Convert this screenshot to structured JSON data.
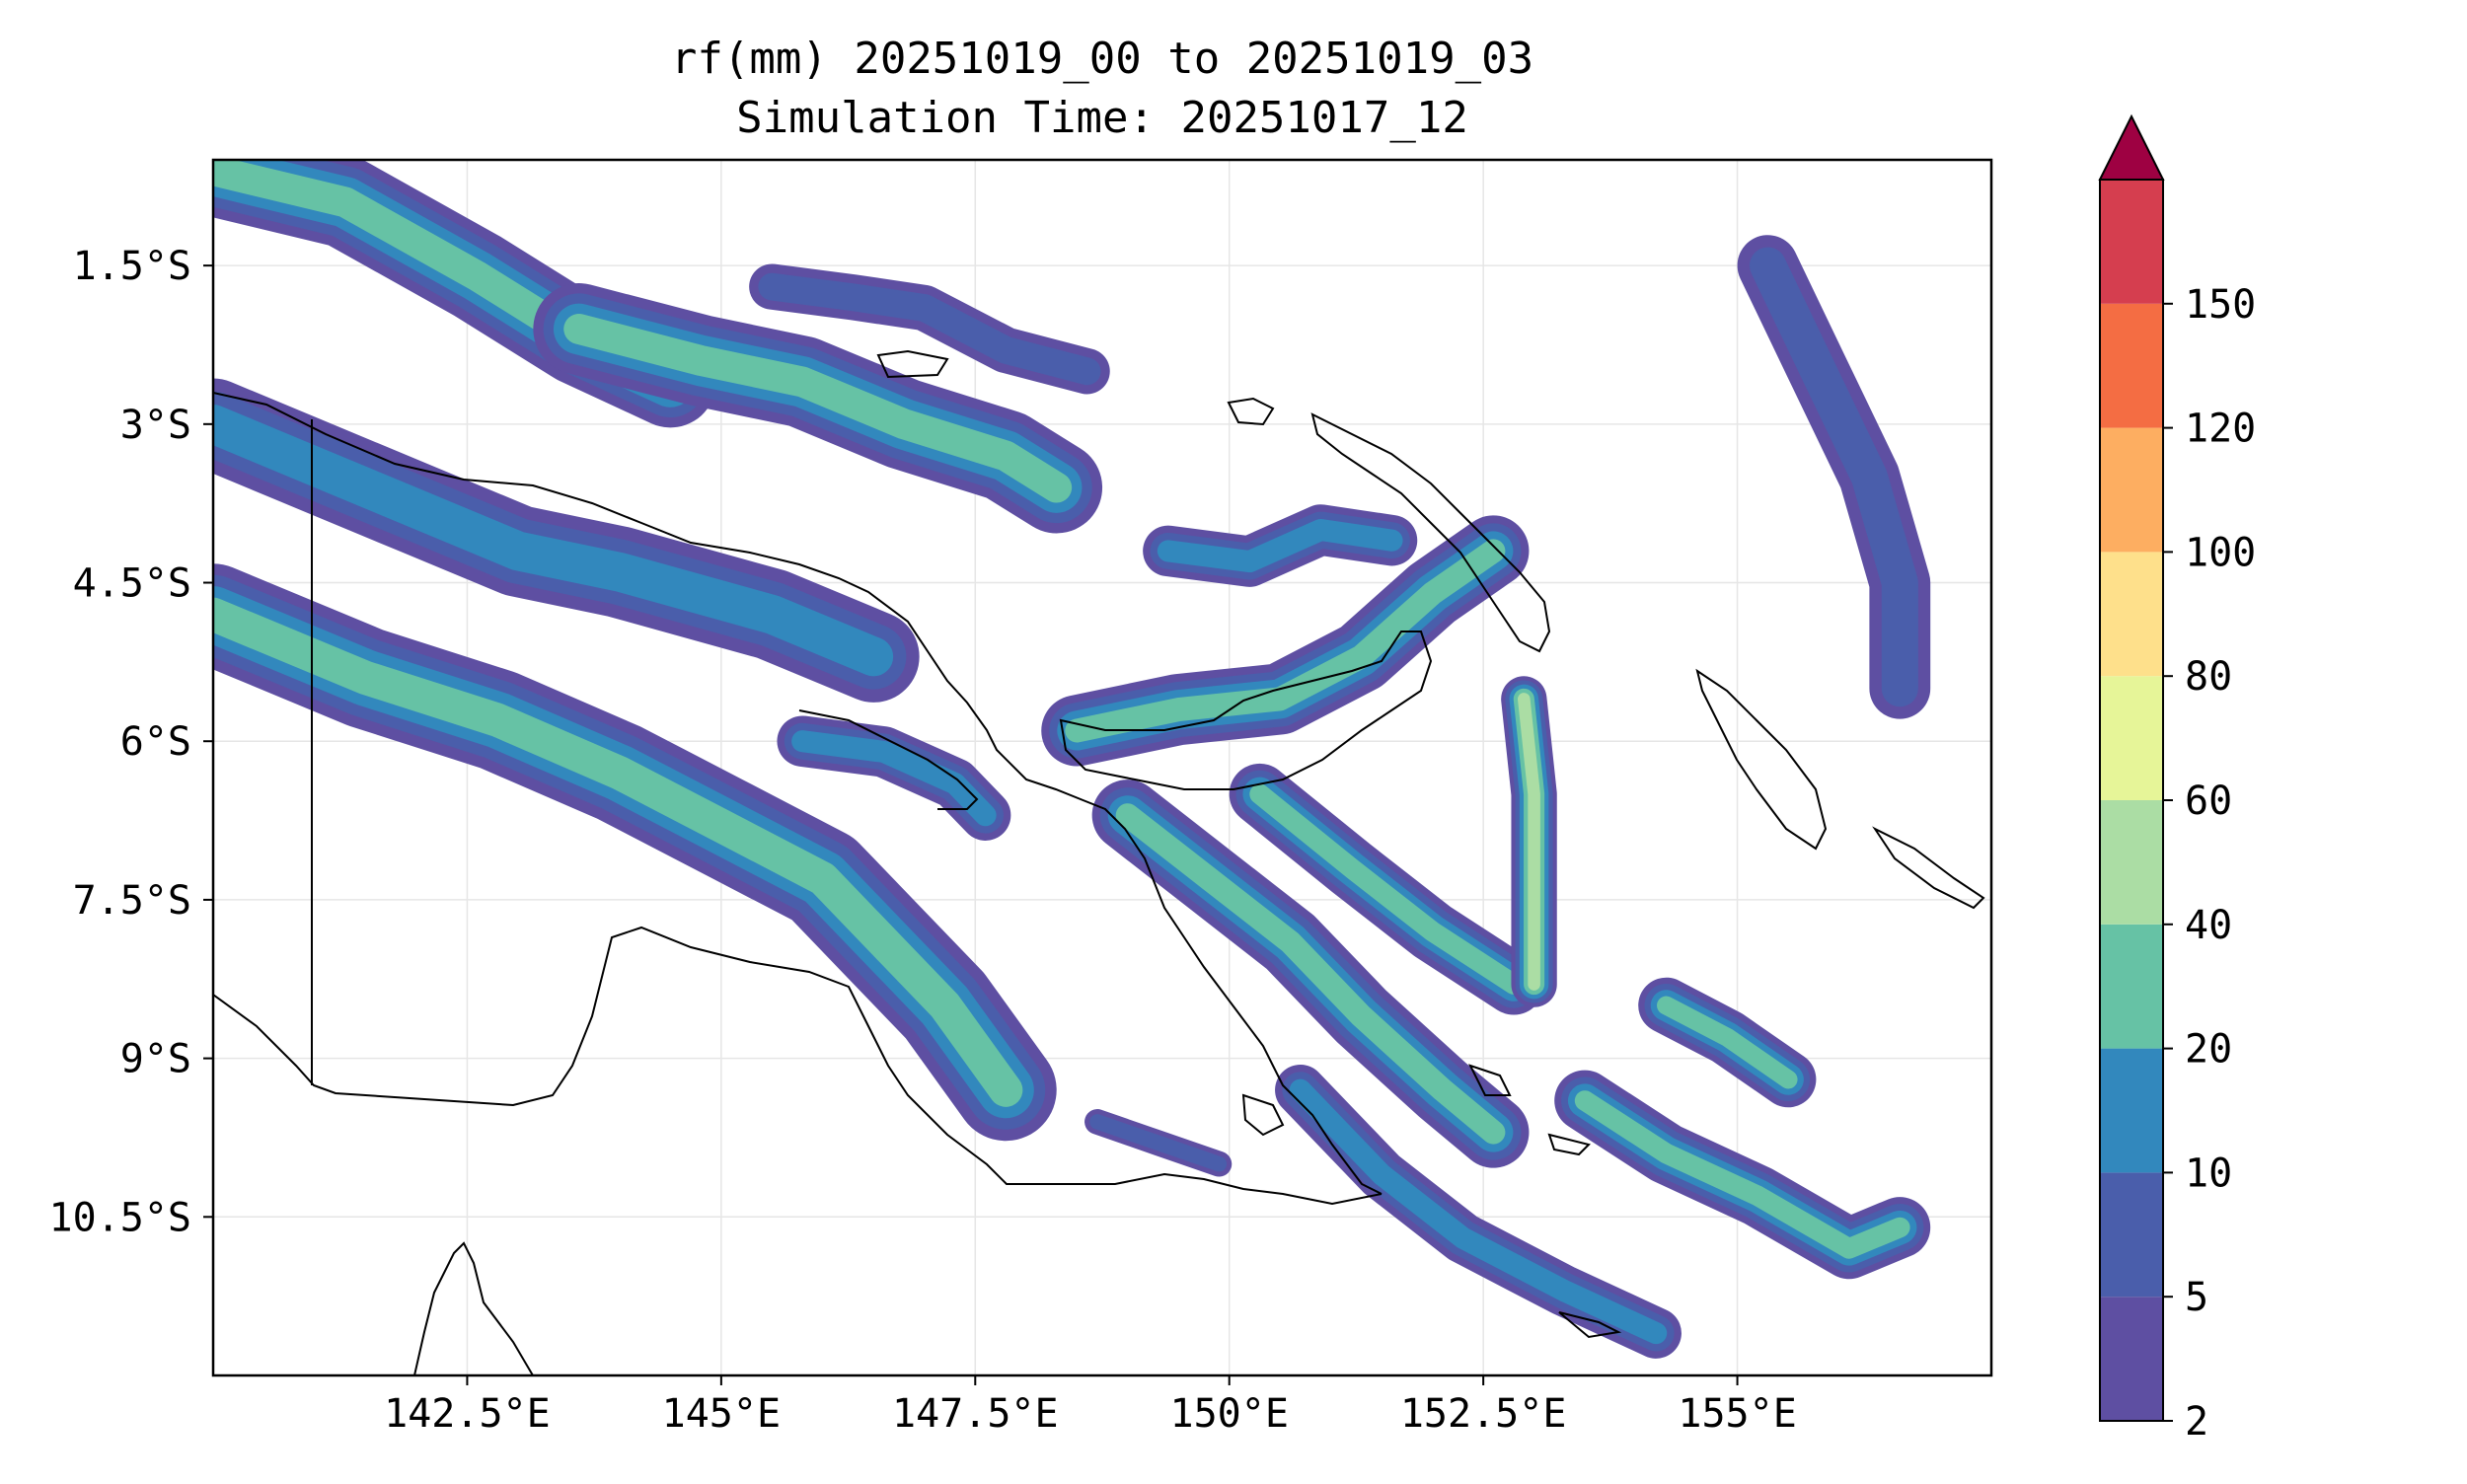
{
  "title": {
    "line1": "rf(mm) 20251019_00 to 20251019_03",
    "line2": "Simulation Time: 20251017_12"
  },
  "map": {
    "lon_range": [
      140.0,
      157.5
    ],
    "lat_range": [
      -12.0,
      -0.5
    ],
    "x_ticks": [
      {
        "value": 142.5,
        "label": "142.5°E"
      },
      {
        "value": 145.0,
        "label": "145°E"
      },
      {
        "value": 147.5,
        "label": "147.5°E"
      },
      {
        "value": 150.0,
        "label": "150°E"
      },
      {
        "value": 152.5,
        "label": "152.5°E"
      },
      {
        "value": 155.0,
        "label": "155°E"
      }
    ],
    "y_ticks": [
      {
        "value": -1.5,
        "label": "1.5°S"
      },
      {
        "value": -3.0,
        "label": "3°S"
      },
      {
        "value": -4.5,
        "label": "4.5°S"
      },
      {
        "value": -6.0,
        "label": "6°S"
      },
      {
        "value": -7.5,
        "label": "7.5°S"
      },
      {
        "value": -9.0,
        "label": "9°S"
      },
      {
        "value": -10.5,
        "label": "10.5°S"
      }
    ],
    "grid": true
  },
  "colorbar": {
    "levels": [
      {
        "label": "2",
        "value": 2
      },
      {
        "label": "5",
        "value": 5
      },
      {
        "label": "10",
        "value": 10
      },
      {
        "label": "20",
        "value": 20
      },
      {
        "label": "40",
        "value": 40
      },
      {
        "label": "60",
        "value": 60
      },
      {
        "label": "80",
        "value": 80
      },
      {
        "label": "100",
        "value": 100
      },
      {
        "label": "120",
        "value": 120
      },
      {
        "label": "150",
        "value": 150
      }
    ],
    "colors": [
      "#5e4fa2",
      "#4a5eab",
      "#3288bd",
      "#66c2a5",
      "#abdda4",
      "#e6f598",
      "#fee08b",
      "#fdae61",
      "#f46d43",
      "#d53e4f"
    ],
    "extend_color": "#9e0142",
    "extend": "max"
  },
  "colors": {
    "coast": "#000000",
    "grid": "#e6e6e6"
  },
  "chart_data": {
    "type": "heatmap",
    "variable": "rf(mm)",
    "period": "20251019_00 to 20251019_03",
    "simulation_time": "20251017_12",
    "xlim": [
      140.0,
      157.5
    ],
    "ylim": [
      -12.0,
      -0.5
    ],
    "levels": [
      2,
      5,
      10,
      20,
      40,
      60,
      80,
      100,
      120,
      150
    ],
    "features": [
      {
        "name": "band-north-west",
        "path": [
          [
            140.0,
            -0.6
          ],
          [
            141.3,
            -0.9
          ],
          [
            142.6,
            -1.6
          ],
          [
            143.6,
            -2.2
          ],
          [
            144.5,
            -2.6
          ]
        ],
        "width": 0.9,
        "intensity": 20
      },
      {
        "name": "band-north-coast",
        "path": [
          [
            143.6,
            -2.1
          ],
          [
            144.8,
            -2.4
          ],
          [
            145.8,
            -2.6
          ],
          [
            146.8,
            -3.0
          ],
          [
            147.8,
            -3.3
          ],
          [
            148.3,
            -3.6
          ]
        ],
        "width": 0.9,
        "intensity": 20
      },
      {
        "name": "band-bismarck",
        "path": [
          [
            145.5,
            -1.7
          ],
          [
            146.3,
            -1.8
          ],
          [
            147.0,
            -1.9
          ],
          [
            147.8,
            -2.3
          ],
          [
            148.6,
            -2.5
          ]
        ],
        "width": 0.45,
        "intensity": 5
      },
      {
        "name": "band-west-coast",
        "path": [
          [
            140.0,
            -3.0
          ],
          [
            141.0,
            -3.4
          ],
          [
            142.0,
            -3.8
          ],
          [
            143.0,
            -4.2
          ],
          [
            144.0,
            -4.4
          ],
          [
            145.5,
            -4.8
          ],
          [
            146.5,
            -5.2
          ]
        ],
        "width": 0.9,
        "intensity": 10
      },
      {
        "name": "band-highlands",
        "path": [
          [
            140.0,
            -4.8
          ],
          [
            141.5,
            -5.4
          ],
          [
            142.8,
            -5.8
          ],
          [
            144.0,
            -6.3
          ],
          [
            145.0,
            -6.8
          ],
          [
            146.0,
            -7.3
          ],
          [
            146.6,
            -7.9
          ],
          [
            147.2,
            -8.5
          ],
          [
            147.8,
            -9.3
          ]
        ],
        "width": 1.0,
        "intensity": 20
      },
      {
        "name": "band-central",
        "path": [
          [
            145.8,
            -6.0
          ],
          [
            146.6,
            -6.1
          ],
          [
            147.3,
            -6.4
          ],
          [
            147.6,
            -6.7
          ]
        ],
        "width": 0.5,
        "intensity": 10
      },
      {
        "name": "band-new-britain",
        "path": [
          [
            148.5,
            -5.9
          ],
          [
            149.5,
            -5.7
          ],
          [
            150.5,
            -5.6
          ],
          [
            151.3,
            -5.2
          ],
          [
            152.0,
            -4.6
          ],
          [
            152.6,
            -4.2
          ]
        ],
        "width": 0.7,
        "intensity": 20
      },
      {
        "name": "band-new-ireland",
        "path": [
          [
            149.4,
            -4.2
          ],
          [
            150.2,
            -4.3
          ],
          [
            150.9,
            -4.0
          ],
          [
            151.6,
            -4.1
          ]
        ],
        "width": 0.5,
        "intensity": 10
      },
      {
        "name": "band-solomon-sea-1",
        "path": [
          [
            149.0,
            -6.7
          ],
          [
            149.8,
            -7.3
          ],
          [
            150.6,
            -7.9
          ],
          [
            151.3,
            -8.6
          ],
          [
            152.1,
            -9.3
          ],
          [
            152.6,
            -9.7
          ]
        ],
        "width": 0.7,
        "intensity": 20
      },
      {
        "name": "band-solomon-sea-2",
        "path": [
          [
            150.3,
            -6.5
          ],
          [
            151.2,
            -7.2
          ],
          [
            152.0,
            -7.8
          ],
          [
            152.8,
            -8.3
          ]
        ],
        "width": 0.6,
        "intensity": 20
      },
      {
        "name": "band-north-south",
        "path": [
          [
            152.9,
            -5.6
          ],
          [
            153.0,
            -6.5
          ],
          [
            153.0,
            -7.5
          ],
          [
            153.0,
            -8.3
          ]
        ],
        "width": 0.45,
        "intensity": 40
      },
      {
        "name": "band-south-east",
        "path": [
          [
            150.7,
            -9.3
          ],
          [
            151.5,
            -10.1
          ],
          [
            152.3,
            -10.7
          ],
          [
            153.3,
            -11.2
          ],
          [
            154.2,
            -11.6
          ]
        ],
        "width": 0.5,
        "intensity": 10
      },
      {
        "name": "band-louisiade",
        "path": [
          [
            153.5,
            -9.4
          ],
          [
            154.3,
            -9.9
          ],
          [
            155.2,
            -10.3
          ],
          [
            156.1,
            -10.8
          ],
          [
            156.6,
            -10.6
          ]
        ],
        "width": 0.6,
        "intensity": 20
      },
      {
        "name": "band-bougainville",
        "path": [
          [
            154.3,
            -8.5
          ],
          [
            154.9,
            -8.8
          ],
          [
            155.5,
            -9.2
          ]
        ],
        "width": 0.55,
        "intensity": 20
      },
      {
        "name": "band-east",
        "path": [
          [
            155.3,
            -1.5
          ],
          [
            155.8,
            -2.5
          ],
          [
            156.3,
            -3.5
          ],
          [
            156.6,
            -4.5
          ],
          [
            156.6,
            -5.5
          ]
        ],
        "width": 0.6,
        "intensity": 5
      },
      {
        "name": "band-papuan-peninsula",
        "path": [
          [
            148.7,
            -9.6
          ],
          [
            149.3,
            -9.8
          ],
          [
            149.9,
            -10.0
          ]
        ],
        "width": 0.25,
        "intensity": 5
      }
    ]
  }
}
